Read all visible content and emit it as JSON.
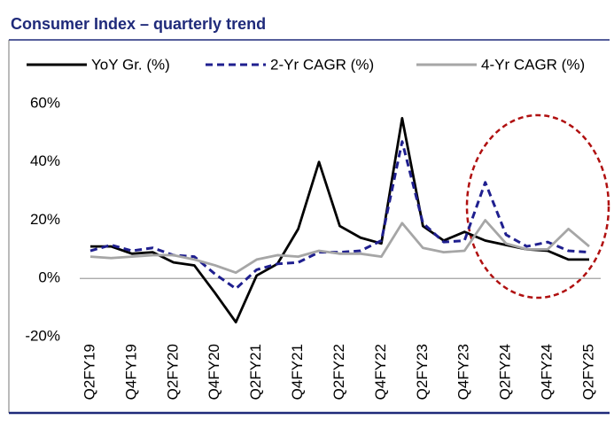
{
  "chart_data": {
    "type": "line",
    "title": "Consumer Index – quarterly trend",
    "categories": [
      "Q2FY19",
      null,
      "Q4FY19",
      null,
      "Q2FY20",
      null,
      "Q4FY20",
      null,
      "Q2FY21",
      null,
      "Q4FY21",
      null,
      "Q2FY22",
      null,
      "Q4FY22",
      null,
      "Q2FY23",
      null,
      "Q4FY23",
      null,
      "Q2FY24",
      null,
      "Q4FY24",
      null,
      "Q2FY25"
    ],
    "series": [
      {
        "name": "YoY Gr. (%)",
        "color": "#000000",
        "dash": false,
        "values": [
          11,
          11,
          8.5,
          9,
          5.5,
          4.5,
          -5,
          -15,
          1,
          5,
          17,
          40,
          18,
          14,
          12,
          55,
          18,
          13,
          16,
          13,
          11.5,
          10,
          9.5,
          6.5,
          6.5
        ]
      },
      {
        "name": "2-Yr CAGR (%)",
        "color": "#1f1f8f",
        "dash": true,
        "values": [
          9.5,
          11.5,
          9.5,
          10.5,
          8,
          7.5,
          1.5,
          -3.5,
          3,
          5,
          5.5,
          9,
          9,
          9.5,
          13,
          47,
          19,
          12.5,
          13,
          33,
          15,
          11,
          12.5,
          9.5,
          9
        ]
      },
      {
        "name": "4-Yr CAGR (%)",
        "color": "#a6a6a6",
        "dash": false,
        "values": [
          7.5,
          7,
          7.5,
          8,
          8,
          6.5,
          4.5,
          2,
          6.5,
          8,
          7.5,
          9.5,
          8.5,
          8.5,
          7.5,
          19,
          10.5,
          9,
          9.5,
          20,
          12,
          10,
          10,
          17,
          11
        ]
      }
    ],
    "ylim": [
      -20,
      60
    ],
    "yticks": [
      {
        "value": -20,
        "label": "-20%"
      },
      {
        "value": 0,
        "label": "0%"
      },
      {
        "value": 20,
        "label": "20%"
      },
      {
        "value": 40,
        "label": "40%"
      },
      {
        "value": 60,
        "label": "60%"
      }
    ],
    "legend": "top"
  }
}
